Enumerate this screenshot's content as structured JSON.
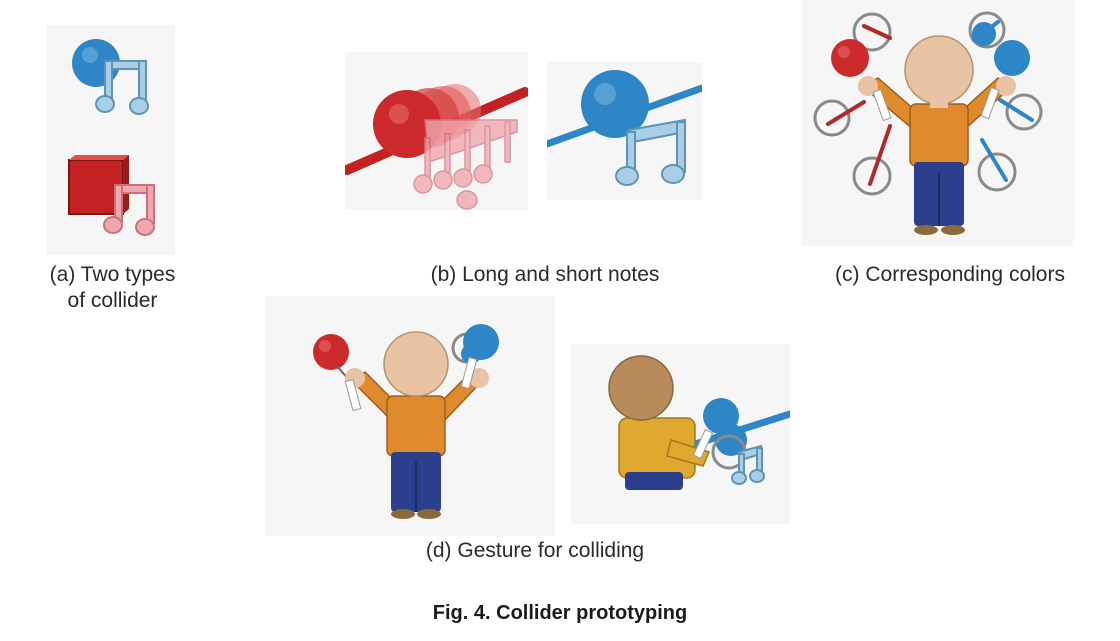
{
  "subfigures": {
    "a": {
      "caption_line1": "(a) Two types",
      "caption_line2": "of collider"
    },
    "b": {
      "caption": "(b) Long and short notes"
    },
    "c": {
      "caption": "(c) Corresponding colors"
    },
    "d": {
      "caption": "(d) Gesture for colliding"
    }
  },
  "figure_caption": "Fig. 4. Collider prototyping",
  "colors": {
    "blue_collider": "#2f86c6",
    "red_collider": "#cc2a2a",
    "note_blue": "#a9cfe6",
    "note_pink": "#f0a8b0",
    "skin": "#e8c3a4",
    "shirt": "#e08a2e",
    "pants": "#2b3f8c",
    "background": "#f6f6f6"
  },
  "icons": [
    "sphere-collider",
    "cube-collider",
    "music-note-icon",
    "avatar-figure",
    "ring-target-icon"
  ]
}
